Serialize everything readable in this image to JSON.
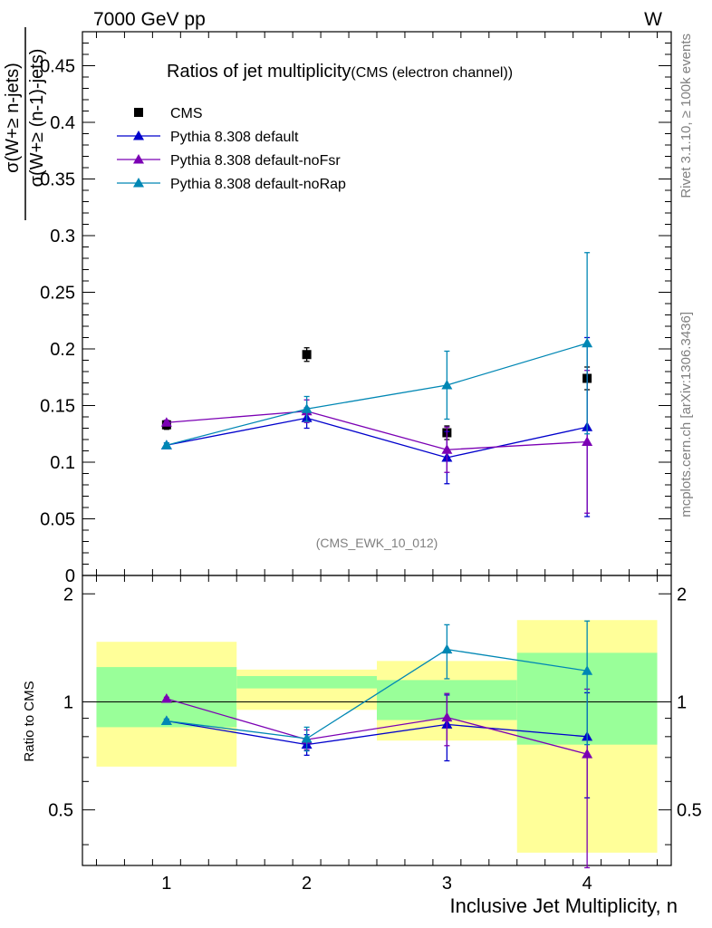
{
  "header": {
    "energy_label": "7000 GeV pp",
    "process_label": "W",
    "title": "Ratios of jet multiplicity",
    "subtitle": "(CMS (electron channel))",
    "analysis_label": "(CMS_EWK_10_012)",
    "side_label_top": "Rivet 3.1.10, ≥ 100k events",
    "side_label_bottom": "mcplots.cern.ch [arXiv:1306.3436]"
  },
  "chart_data": [
    {
      "type": "scatter",
      "title": "Ratios of jet multiplicity",
      "subtitle": "(CMS (electron channel))",
      "xlabel": "Inclusive Jet Multiplicity, n",
      "ylabel": "σ(W+≥ n-jets) / σ(W+≥ (n-1)-jets)",
      "ylabel_num": "σ(W+≥ n-jets)",
      "ylabel_den": "σ(W+≥ (n-1)-jets)",
      "xlim": [
        0.4,
        4.6
      ],
      "ylim": [
        0,
        0.48
      ],
      "xticks": [
        1,
        2,
        3,
        4
      ],
      "yticks": [
        0,
        0.05,
        0.1,
        0.15,
        0.2,
        0.25,
        0.3,
        0.35,
        0.4,
        0.45
      ],
      "ytick_labels": [
        "0",
        "0.05",
        "0.1",
        "0.15",
        "0.2",
        "0.25",
        "0.3",
        "0.35",
        "0.4",
        "0.45"
      ],
      "legend_position": "top-left",
      "series": [
        {
          "name": "CMS",
          "color": "#000000",
          "marker": "square",
          "x": [
            1,
            2,
            3,
            4
          ],
          "y": [
            0.133,
            0.195,
            0.126,
            0.174
          ],
          "yerr": [
            0.004,
            0.006,
            0.006,
            0.01
          ]
        },
        {
          "name": "Pythia 8.308 default",
          "color": "#0000cc",
          "marker": "triangle",
          "x": [
            1,
            2,
            3,
            4
          ],
          "y": [
            0.115,
            0.139,
            0.104,
            0.131
          ],
          "yerr": [
            0.002,
            0.009,
            0.023,
            0.079
          ]
        },
        {
          "name": "Pythia 8.308 default-noFsr",
          "color": "#7b00b4",
          "marker": "triangle",
          "x": [
            1,
            2,
            3,
            4
          ],
          "y": [
            0.135,
            0.145,
            0.111,
            0.118
          ],
          "yerr": [
            0.002,
            0.01,
            0.02,
            0.063
          ]
        },
        {
          "name": "Pythia 8.308 default-noRap",
          "color": "#0087b4",
          "marker": "triangle",
          "x": [
            1,
            2,
            3,
            4
          ],
          "y": [
            0.115,
            0.147,
            0.168,
            0.205
          ],
          "yerr": [
            0.002,
            0.011,
            0.03,
            0.08
          ]
        }
      ]
    },
    {
      "type": "scatter",
      "ylabel": "Ratio to CMS",
      "xlabel": "Inclusive Jet Multiplicity, n",
      "xlim": [
        0.4,
        4.6
      ],
      "ylim": [
        0.35,
        2.25
      ],
      "yscale": "log",
      "xticks": [
        1,
        2,
        3,
        4
      ],
      "xtick_labels": [
        "1",
        "2",
        "3",
        "4"
      ],
      "yticks": [
        0.5,
        1,
        2
      ],
      "ytick_labels": [
        "0.5",
        "1",
        "2"
      ],
      "bands": [
        {
          "bin": [
            0.5,
            1.5
          ],
          "inner": [
            0.85,
            1.25
          ],
          "outer": [
            0.66,
            1.47
          ]
        },
        {
          "bin": [
            1.5,
            2.5
          ],
          "inner": [
            1.09,
            1.18
          ],
          "outer": [
            0.95,
            1.23
          ]
        },
        {
          "bin": [
            2.5,
            3.5
          ],
          "inner": [
            0.89,
            1.15
          ],
          "outer": [
            0.78,
            1.3
          ]
        },
        {
          "bin": [
            3.5,
            4.5
          ],
          "inner": [
            0.76,
            1.37
          ],
          "outer": [
            0.38,
            1.69
          ]
        }
      ],
      "band_colors": {
        "inner": "#99ff99",
        "outer": "#ffff99"
      },
      "series": [
        {
          "name": "Pythia 8.308 default",
          "color": "#0000cc",
          "x": [
            1,
            2,
            3,
            4
          ],
          "y": [
            0.885,
            0.76,
            0.865,
            0.8
          ],
          "yerr": [
            0.01,
            0.05,
            0.18,
            0.26
          ]
        },
        {
          "name": "Pythia 8.308 default-noFsr",
          "color": "#7b00b4",
          "x": [
            1,
            2,
            3,
            4
          ],
          "y": [
            1.02,
            0.785,
            0.905,
            0.715
          ],
          "yerr": [
            0.01,
            0.05,
            0.15,
            0.37
          ]
        },
        {
          "name": "Pythia 8.308 default-noRap",
          "color": "#0087b4",
          "x": [
            1,
            2,
            3,
            4
          ],
          "y": [
            0.885,
            0.79,
            1.4,
            1.22
          ],
          "yerr": [
            0.01,
            0.06,
            0.24,
            0.46
          ]
        }
      ]
    }
  ]
}
